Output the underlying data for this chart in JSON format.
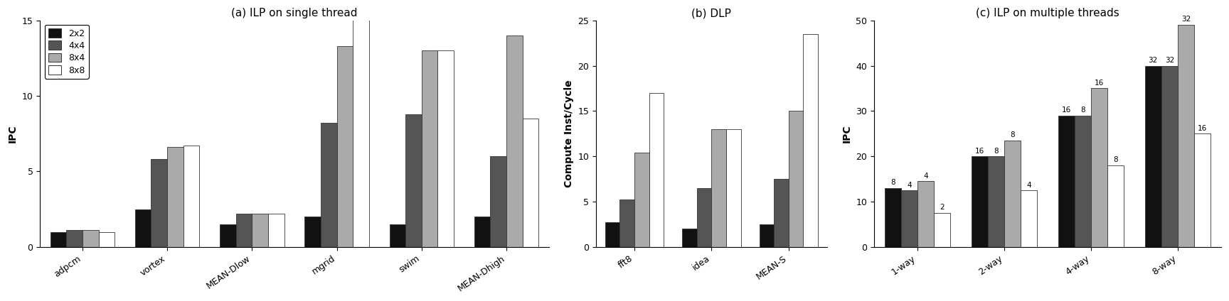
{
  "panel_a": {
    "title": "(a) ILP on single thread",
    "ylabel": "IPC",
    "ylim": [
      0,
      15
    ],
    "yticks": [
      0,
      5,
      10,
      15
    ],
    "categories": [
      "adpcm",
      "vortex",
      "MEAN-Dlow",
      "mgrid",
      "swim",
      "MEAN-Dhigh"
    ],
    "series": {
      "2x2": [
        1.0,
        2.5,
        1.5,
        2.0,
        1.5,
        2.0
      ],
      "4x4": [
        1.1,
        5.8,
        2.2,
        8.2,
        8.8,
        6.0
      ],
      "8x4": [
        1.1,
        6.6,
        2.2,
        13.3,
        13.0,
        14.0
      ],
      "8x8": [
        1.0,
        6.7,
        2.2,
        15.3,
        13.0,
        8.5
      ]
    }
  },
  "panel_b": {
    "title": "(b) DLP",
    "ylabel": "Compute Inst/Cycle",
    "ylim": [
      0,
      25
    ],
    "yticks": [
      0,
      5,
      10,
      15,
      20,
      25
    ],
    "categories": [
      "fft8",
      "idea",
      "MEAN-S"
    ],
    "series": {
      "2x2": [
        2.7,
        2.0,
        2.5
      ],
      "4x4": [
        5.2,
        6.5,
        7.5
      ],
      "8x4": [
        10.4,
        13.0,
        15.0
      ],
      "8x8": [
        17.0,
        13.0,
        23.5
      ]
    }
  },
  "panel_c": {
    "title": "(c) ILP on multiple threads",
    "ylabel": "IPC",
    "ylim": [
      0,
      50
    ],
    "yticks": [
      0,
      10,
      20,
      30,
      40,
      50
    ],
    "categories": [
      "1-way",
      "2-way",
      "4-way",
      "8-way"
    ],
    "series": {
      "2x2": [
        13.0,
        20.0,
        29.0,
        40.0
      ],
      "4x4": [
        12.5,
        20.0,
        29.0,
        40.0
      ],
      "8x4": [
        14.5,
        23.5,
        35.0,
        49.0
      ],
      "8x8": [
        7.5,
        12.5,
        18.0,
        25.0
      ]
    },
    "annotations": {
      "2x2": [
        "8",
        "16",
        "16",
        "32"
      ],
      "4x4": [
        "4",
        "8",
        "8",
        "32"
      ],
      "8x4": [
        "4",
        "8",
        "16",
        "32"
      ],
      "8x8": [
        "2",
        "4",
        "8",
        "16"
      ]
    }
  },
  "colors": {
    "2x2": "#111111",
    "4x4": "#555555",
    "8x4": "#aaaaaa",
    "8x8": "#ffffff"
  },
  "bar_edge_color": "#333333",
  "legend_labels": [
    "2x2",
    "4x4",
    "8x4",
    "8x8"
  ],
  "figsize": [
    17.28,
    4.24
  ],
  "dpi": 100
}
